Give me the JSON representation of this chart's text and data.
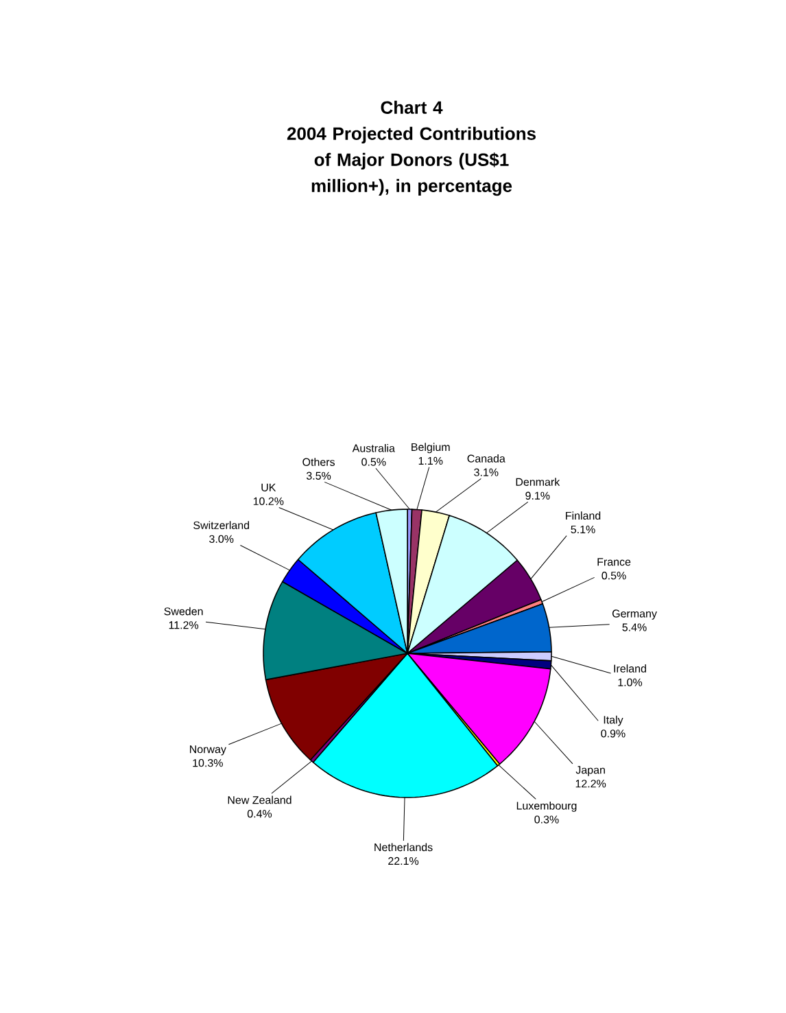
{
  "chart_data": {
    "type": "pie",
    "title": "Chart 4",
    "subtitle": "2004 Projected Contributions of Major Donors (US$1 million+), in percentage",
    "categories": [
      "Australia",
      "Belgium",
      "Canada",
      "Denmark",
      "Finland",
      "France",
      "Germany",
      "Ireland",
      "Italy",
      "Japan",
      "Luxembourg",
      "Netherlands",
      "New Zealand",
      "Norway",
      "Sweden",
      "Switzerland",
      "UK",
      "Others"
    ],
    "values": [
      0.5,
      1.1,
      3.1,
      9.1,
      5.1,
      0.5,
      5.4,
      1.0,
      0.9,
      12.2,
      0.3,
      22.1,
      0.4,
      10.3,
      11.2,
      3.0,
      10.2,
      3.5
    ],
    "value_labels": [
      "0.5%",
      "1.1%",
      "3.1%",
      "9.1%",
      "5.1%",
      "0.5%",
      "5.4%",
      "1.0%",
      "0.9%",
      "12.2%",
      "0.3%",
      "22.1%",
      "0.4%",
      "10.3%",
      "11.2%",
      "3.0%",
      "10.2%",
      "3.5%"
    ],
    "colors": [
      "#9999ff",
      "#993366",
      "#ffffcc",
      "#ccffff",
      "#660066",
      "#ff8080",
      "#0066cc",
      "#ccccff",
      "#000080",
      "#ff00ff",
      "#ffff00",
      "#00ffff",
      "#800080",
      "#800000",
      "#008080",
      "#0000ff",
      "#00ccff",
      "#ccffff"
    ]
  }
}
